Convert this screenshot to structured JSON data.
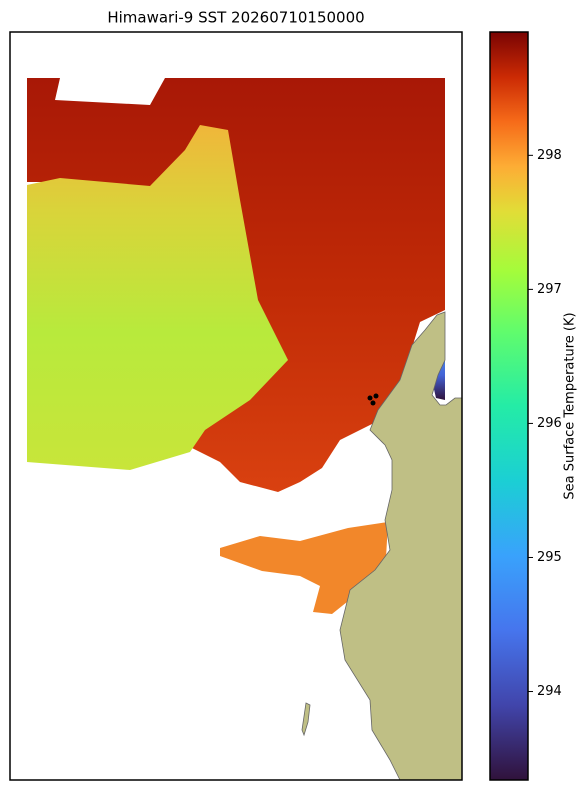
{
  "map": {
    "title": "Himawari-9 SST 20260710150000",
    "colorbar": {
      "label": "Sea Surface Temperature (K)",
      "lim": [
        293.34,
        298.92
      ],
      "ticks": [
        294,
        295,
        296,
        297,
        298
      ]
    }
  }
}
